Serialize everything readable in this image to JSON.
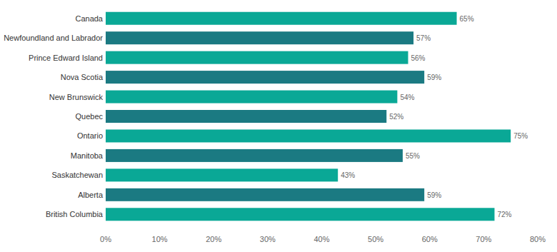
{
  "chart_data": {
    "type": "bar",
    "orientation": "horizontal",
    "categories": [
      "Canada",
      "Newfoundland and Labrador",
      "Prince Edward Island",
      "Nova Scotia",
      "New Brunswick",
      "Quebec",
      "Ontario",
      "Manitoba",
      "Saskatchewan",
      "Alberta",
      "British Columbia"
    ],
    "values": [
      65,
      57,
      56,
      59,
      54,
      52,
      75,
      55,
      43,
      59,
      72
    ],
    "value_labels": [
      "65%",
      "57%",
      "56%",
      "59%",
      "54%",
      "52%",
      "75%",
      "55%",
      "43%",
      "59%",
      "72%"
    ],
    "colors": [
      "#0aa896",
      "#1b7a82",
      "#0aa896",
      "#1b7a82",
      "#0aa896",
      "#1b7a82",
      "#0aa896",
      "#1b7a82",
      "#0aa896",
      "#1b7a82",
      "#0aa896"
    ],
    "xlim": [
      0,
      80
    ],
    "xticks": [
      {
        "value": 0,
        "label": "0%"
      },
      {
        "value": 10,
        "label": "10%"
      },
      {
        "value": 20,
        "label": "20%"
      },
      {
        "value": 30,
        "label": "30%"
      },
      {
        "value": 40,
        "label": "40%"
      },
      {
        "value": 50,
        "label": "50%"
      },
      {
        "value": 60,
        "label": "60%"
      },
      {
        "value": 70,
        "label": "70%"
      },
      {
        "value": 80,
        "label": "80%"
      }
    ],
    "grid": false,
    "data_labels": true
  }
}
